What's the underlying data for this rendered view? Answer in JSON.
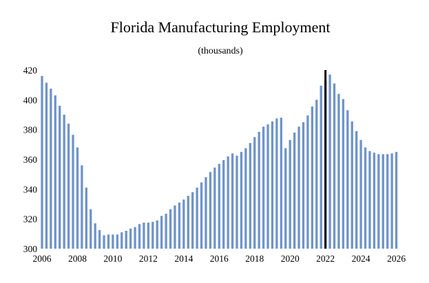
{
  "chart_data": {
    "type": "bar",
    "title": "Florida Manufacturing Employment",
    "subtitle": "(thousands)",
    "xlabel": "",
    "ylabel": "",
    "ylim": [
      300,
      420
    ],
    "yticks": [
      "300",
      "320",
      "340",
      "360",
      "380",
      "400",
      "420"
    ],
    "xticks": [
      "2006",
      "2008",
      "2010",
      "2012",
      "2014",
      "2016",
      "2018",
      "2020",
      "2022",
      "2024",
      "2026"
    ],
    "x_start": 2006,
    "x_end": 2026.25,
    "frequency": "quarterly",
    "first_quarter": 2006,
    "marker_line_x": 2022,
    "grid": false,
    "bar_color": "#7094c9",
    "marker_color": "#000000",
    "values": [
      416,
      411.5,
      407.5,
      403,
      396,
      390,
      384,
      376.5,
      368,
      356,
      341,
      326.5,
      317,
      312.5,
      309,
      309.5,
      309.5,
      309.5,
      311,
      312,
      313.5,
      314.5,
      316.5,
      317.5,
      317.5,
      318,
      319,
      322,
      323.5,
      326.5,
      329,
      331,
      333,
      335.5,
      338,
      341,
      344.5,
      348,
      351.5,
      354.5,
      357,
      359.5,
      362,
      364,
      362.5,
      365,
      367.5,
      371,
      375,
      378.5,
      382,
      383.5,
      385.5,
      387.5,
      388,
      367.5,
      373,
      378,
      382,
      385,
      389.5,
      395.5,
      400,
      409.5,
      413,
      417,
      411,
      404,
      400.5,
      393,
      385.5,
      379,
      373,
      368,
      365.5,
      364.5,
      363.5,
      363.5,
      363.5,
      364,
      365
    ]
  }
}
